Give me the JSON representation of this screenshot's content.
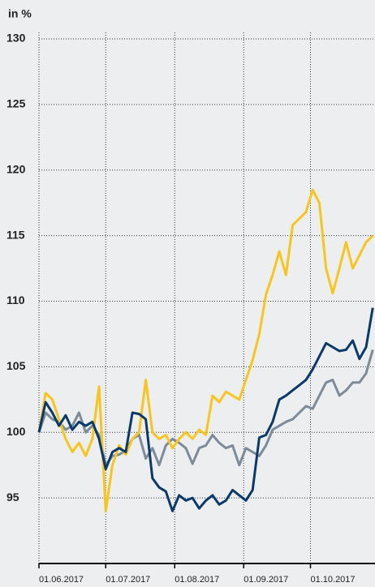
{
  "chart_data": {
    "type": "line",
    "y_label": "in %",
    "x": [
      0,
      3,
      6,
      9,
      12,
      15,
      18,
      21,
      24,
      27,
      30,
      33,
      36,
      39,
      42,
      45,
      48,
      51,
      54,
      57,
      60,
      63,
      66,
      69,
      72,
      75,
      78,
      81,
      84,
      87,
      90,
      93,
      96,
      99,
      102,
      105,
      108,
      111,
      114,
      117,
      120,
      123,
      126,
      129,
      132,
      135,
      138,
      141,
      144,
      147,
      150
    ],
    "xlim": [
      0,
      151
    ],
    "xticks": [
      {
        "value": 0,
        "label": "01.06.2017"
      },
      {
        "value": 30,
        "label": "01.07.2017"
      },
      {
        "value": 61,
        "label": "01.08.2017"
      },
      {
        "value": 92,
        "label": "01.09.2017"
      },
      {
        "value": 122,
        "label": "01.10.2017"
      }
    ],
    "ylim": [
      90,
      130
    ],
    "yticks": [
      95,
      100,
      105,
      110,
      115,
      120,
      125,
      130
    ],
    "grid": true,
    "series": [
      {
        "color": "#7d8b98",
        "values": [
          100,
          101.5,
          101,
          100.8,
          100.2,
          100.5,
          101.5,
          100,
          100.5,
          99.8,
          97.5,
          98.2,
          98.3,
          98.6,
          99.5,
          99.8,
          98,
          98.8,
          97.5,
          99,
          99.5,
          99.2,
          98.8,
          97.6,
          98.8,
          99,
          99.8,
          99.2,
          98.8,
          99,
          97.5,
          98.8,
          98.5,
          98.2,
          99,
          100.2,
          100.5,
          100.8,
          101,
          101.5,
          102,
          101.8,
          102.8,
          103.8,
          104,
          102.8,
          103.2,
          103.8,
          103.8,
          104.5,
          106.3
        ]
      },
      {
        "color": "#f7c51e",
        "values": [
          100,
          103,
          102.5,
          101,
          99.5,
          98.5,
          99.2,
          98.2,
          99.5,
          103.5,
          94,
          97.5,
          99,
          98.3,
          99.5,
          100,
          104,
          100,
          99.5,
          99.8,
          98.8,
          99.5,
          100,
          99.5,
          100.2,
          99.8,
          102.8,
          102.3,
          103.1,
          102.8,
          102.5,
          104,
          105.5,
          107.5,
          110.5,
          112,
          113.8,
          112,
          115.8,
          116.3,
          116.8,
          118.5,
          117.5,
          112.5,
          110.6,
          112.5,
          114.5,
          112.5,
          113.5,
          114.5,
          115
        ]
      },
      {
        "color": "#0b3a6a",
        "values": [
          100,
          102.3,
          101.5,
          100.5,
          101.3,
          100.2,
          100.8,
          100.5,
          100.8,
          99.5,
          97.2,
          98.5,
          98.8,
          98.5,
          101.5,
          101.4,
          101,
          96.5,
          95.8,
          95.5,
          94,
          95.2,
          94.8,
          95,
          94.2,
          94.8,
          95.2,
          94.5,
          94.8,
          95.6,
          95.2,
          94.8,
          95.6,
          99.6,
          99.8,
          100.8,
          102.5,
          102.8,
          103.2,
          103.6,
          104,
          104.8,
          105.8,
          106.8,
          106.5,
          106.2,
          106.3,
          107,
          105.6,
          106.5,
          109.5
        ]
      }
    ]
  }
}
